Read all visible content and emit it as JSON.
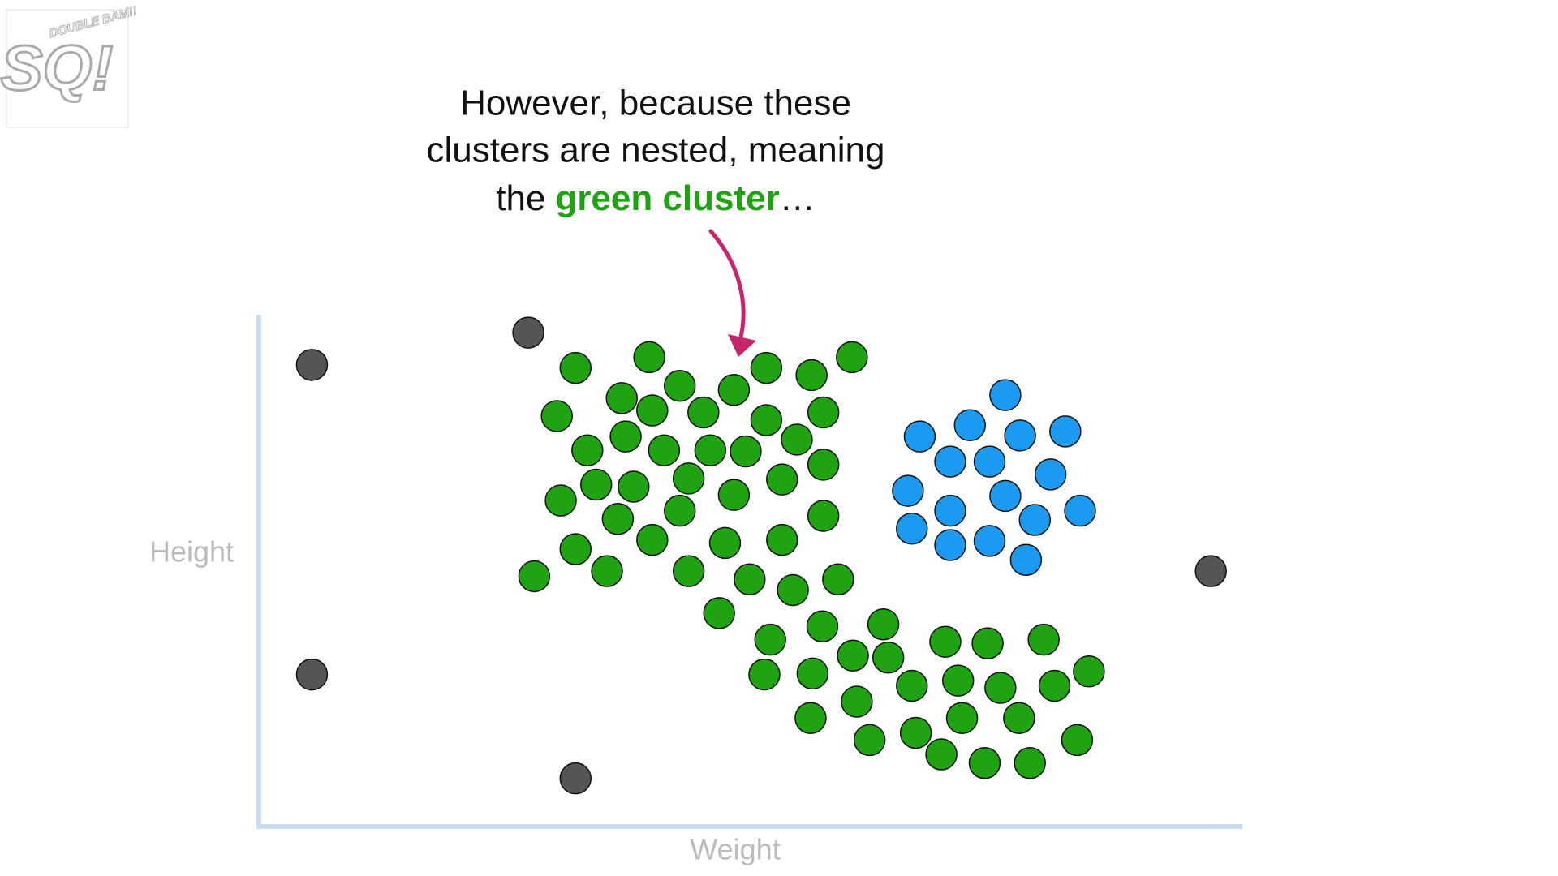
{
  "chart_data": {
    "type": "scatter",
    "annotation": [
      "However, because these",
      "clusters are nested, meaning",
      "the",
      "green cluster",
      "…"
    ],
    "annotation_color": "#1fa312",
    "xlabel": "Weight",
    "ylabel": "Height",
    "logo": [
      "SQ!",
      "DOUBLE BAM!!"
    ],
    "xlim": [
      0,
      100
    ],
    "ylim": [
      0,
      100
    ],
    "series": [
      {
        "color": "#555555",
        "x": [
          5.4,
          27.4,
          5.4,
          32.2,
          96.8
        ],
        "y": [
          90.2,
          96.5,
          29.7,
          9.4,
          49.9
        ]
      },
      {
        "color": "#1a9af0",
        "x": [
          75.9,
          67.2,
          72.3,
          77.4,
          82.0,
          70.3,
          74.3,
          80.5,
          66.0,
          75.9,
          70.3,
          78.9,
          83.5,
          66.4,
          70.3,
          74.3,
          78.0
        ],
        "y": [
          84.3,
          76.2,
          78.4,
          76.4,
          77.2,
          71.3,
          71.3,
          68.8,
          65.6,
          64.6,
          61.7,
          59.9,
          61.7,
          58.2,
          55.0,
          55.8,
          52.1
        ]
      },
      {
        "color": "#1fa312",
        "x": [
          32.2,
          39.7,
          60.3,
          51.6,
          56.2,
          42.8,
          48.3,
          36.9,
          40.0,
          30.3,
          45.2,
          51.6,
          57.4,
          33.4,
          37.3,
          41.2,
          45.9,
          49.5,
          54.7,
          57.4,
          30.7,
          34.3,
          38.1,
          43.7,
          48.3,
          53.2,
          36.5,
          42.8,
          57.4,
          32.2,
          40.0,
          47.4,
          53.2,
          28.0,
          35.4,
          43.7,
          49.9,
          54.3,
          58.9,
          46.8,
          52.0,
          57.3,
          63.5,
          69.8,
          74.1,
          79.8,
          60.4,
          64.0,
          51.4,
          56.3,
          66.4,
          71.1,
          75.4,
          80.9,
          84.4,
          60.8,
          56.1,
          71.5,
          77.3,
          62.1,
          66.8,
          69.4,
          73.8,
          78.4,
          83.2
        ],
        "y": [
          89.6,
          91.7,
          91.7,
          89.6,
          88.2,
          86.1,
          85.3,
          83.7,
          81.3,
          80.2,
          80.9,
          79.4,
          80.9,
          73.5,
          76.2,
          73.5,
          73.5,
          73.3,
          75.6,
          70.7,
          63.7,
          66.8,
          66.4,
          68.0,
          64.8,
          67.8,
          60.1,
          61.7,
          60.7,
          54.2,
          56.0,
          55.4,
          56.0,
          48.9,
          49.9,
          49.9,
          48.3,
          46.2,
          48.3,
          41.7,
          36.5,
          39.1,
          39.5,
          36.1,
          35.8,
          36.5,
          33.4,
          33.0,
          29.7,
          29.9,
          27.5,
          28.5,
          27.1,
          27.5,
          30.3,
          24.4,
          21.2,
          21.2,
          21.2,
          16.9,
          18.3,
          14.1,
          12.4,
          12.4,
          16.9
        ]
      }
    ]
  }
}
